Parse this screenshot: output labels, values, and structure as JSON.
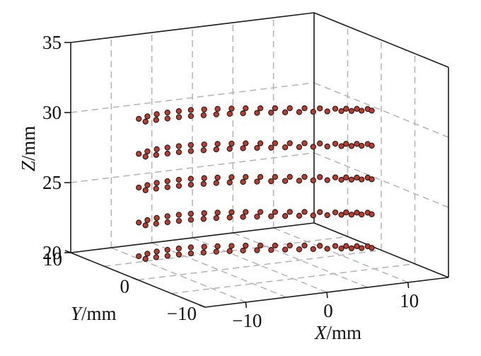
{
  "chart_data": {
    "type": "scatter",
    "title": "",
    "xlabel_var": "X",
    "xlabel_unit": "/mm",
    "ylabel_var": "Y",
    "ylabel_unit": "/mm",
    "zlabel_var": "Z",
    "zlabel_unit": "/mm",
    "xlim": [
      -15,
      15
    ],
    "ylim": [
      -10,
      10
    ],
    "zlim": [
      20,
      35
    ],
    "x_ticks": [
      {
        "value": -10,
        "label": "−10"
      },
      {
        "value": 0,
        "label": "0"
      },
      {
        "value": 10,
        "label": "10"
      }
    ],
    "y_ticks": [
      {
        "value": 10,
        "label": "10"
      },
      {
        "value": 0,
        "label": "0"
      },
      {
        "value": -10,
        "label": "−10"
      }
    ],
    "z_ticks": [
      {
        "value": 20,
        "label": "20"
      },
      {
        "value": 25,
        "label": "25"
      },
      {
        "value": 30,
        "label": "30"
      },
      {
        "value": 35,
        "label": "35"
      }
    ],
    "grid": true,
    "marker_color": "#c0392b",
    "marker_edge_color": "#1a1a1a",
    "layers": [
      {
        "z": 20.8,
        "points": [
          [
            -12,
            3.5
          ],
          [
            -10.6,
            3.9
          ],
          [
            -9.2,
            4.2
          ],
          [
            -7.8,
            4.3
          ],
          [
            -6.4,
            4.3
          ],
          [
            -5,
            4.2
          ],
          [
            -3.6,
            3.9
          ],
          [
            -2.2,
            3.6
          ],
          [
            -0.8,
            3.2
          ],
          [
            0.6,
            2.8
          ],
          [
            2,
            2.3
          ],
          [
            3.4,
            1.8
          ],
          [
            4.8,
            1.3
          ],
          [
            6.2,
            0.8
          ],
          [
            7.6,
            0.2
          ],
          [
            9,
            -0.4
          ],
          [
            10,
            -0.8
          ],
          [
            11,
            -1.2
          ],
          [
            12,
            -1.6
          ],
          [
            12,
            -2.2
          ],
          [
            11,
            -1.9
          ],
          [
            10,
            -1.6
          ],
          [
            9,
            -1.3
          ],
          [
            7.6,
            -0.9
          ],
          [
            6.2,
            -0.5
          ],
          [
            4.8,
            -0.1
          ],
          [
            3.4,
            0.3
          ],
          [
            2,
            0.7
          ],
          [
            0.6,
            1.1
          ],
          [
            -0.8,
            1.5
          ],
          [
            -2.2,
            1.8
          ],
          [
            -3.6,
            2.1
          ],
          [
            -5,
            2.3
          ],
          [
            -6.4,
            2.5
          ],
          [
            -7.8,
            2.6
          ],
          [
            -9.2,
            2.6
          ],
          [
            -10.6,
            2.6
          ],
          [
            -12,
            2.5
          ]
        ]
      },
      {
        "z": 23.2,
        "points": [
          [
            -12,
            3.5
          ],
          [
            -10.6,
            3.9
          ],
          [
            -9.2,
            4.2
          ],
          [
            -7.8,
            4.3
          ],
          [
            -6.4,
            4.3
          ],
          [
            -5,
            4.2
          ],
          [
            -3.6,
            3.9
          ],
          [
            -2.2,
            3.6
          ],
          [
            -0.8,
            3.2
          ],
          [
            0.6,
            2.8
          ],
          [
            2,
            2.3
          ],
          [
            3.4,
            1.8
          ],
          [
            4.8,
            1.3
          ],
          [
            6.2,
            0.8
          ],
          [
            7.6,
            0.2
          ],
          [
            9,
            -0.4
          ],
          [
            10,
            -0.8
          ],
          [
            11,
            -1.2
          ],
          [
            12,
            -1.6
          ],
          [
            12,
            -2.2
          ],
          [
            11,
            -1.9
          ],
          [
            10,
            -1.6
          ],
          [
            9,
            -1.3
          ],
          [
            7.6,
            -0.9
          ],
          [
            6.2,
            -0.5
          ],
          [
            4.8,
            -0.1
          ],
          [
            3.4,
            0.3
          ],
          [
            2,
            0.7
          ],
          [
            0.6,
            1.1
          ],
          [
            -0.8,
            1.5
          ],
          [
            -2.2,
            1.8
          ],
          [
            -3.6,
            2.1
          ],
          [
            -5,
            2.3
          ],
          [
            -6.4,
            2.5
          ],
          [
            -7.8,
            2.6
          ],
          [
            -9.2,
            2.6
          ],
          [
            -10.6,
            2.6
          ],
          [
            -12,
            2.5
          ]
        ]
      },
      {
        "z": 25.7,
        "points": [
          [
            -12,
            3.5
          ],
          [
            -10.6,
            3.9
          ],
          [
            -9.2,
            4.2
          ],
          [
            -7.8,
            4.3
          ],
          [
            -6.4,
            4.3
          ],
          [
            -5,
            4.2
          ],
          [
            -3.6,
            3.9
          ],
          [
            -2.2,
            3.6
          ],
          [
            -0.8,
            3.2
          ],
          [
            0.6,
            2.8
          ],
          [
            2,
            2.3
          ],
          [
            3.4,
            1.8
          ],
          [
            4.8,
            1.3
          ],
          [
            6.2,
            0.8
          ],
          [
            7.6,
            0.2
          ],
          [
            9,
            -0.4
          ],
          [
            10,
            -0.8
          ],
          [
            11,
            -1.2
          ],
          [
            12,
            -1.6
          ],
          [
            12,
            -2.2
          ],
          [
            11,
            -1.9
          ],
          [
            10,
            -1.6
          ],
          [
            9,
            -1.3
          ],
          [
            7.6,
            -0.9
          ],
          [
            6.2,
            -0.5
          ],
          [
            4.8,
            -0.1
          ],
          [
            3.4,
            0.3
          ],
          [
            2,
            0.7
          ],
          [
            0.6,
            1.1
          ],
          [
            -0.8,
            1.5
          ],
          [
            -2.2,
            1.8
          ],
          [
            -3.6,
            2.1
          ],
          [
            -5,
            2.3
          ],
          [
            -6.4,
            2.5
          ],
          [
            -7.8,
            2.6
          ],
          [
            -9.2,
            2.6
          ],
          [
            -10.6,
            2.6
          ],
          [
            -12,
            2.5
          ]
        ]
      },
      {
        "z": 28.1,
        "points": [
          [
            -12,
            3.5
          ],
          [
            -10.6,
            3.9
          ],
          [
            -9.2,
            4.2
          ],
          [
            -7.8,
            4.3
          ],
          [
            -6.4,
            4.3
          ],
          [
            -5,
            4.2
          ],
          [
            -3.6,
            3.9
          ],
          [
            -2.2,
            3.6
          ],
          [
            -0.8,
            3.2
          ],
          [
            0.6,
            2.8
          ],
          [
            2,
            2.3
          ],
          [
            3.4,
            1.8
          ],
          [
            4.8,
            1.3
          ],
          [
            6.2,
            0.8
          ],
          [
            7.6,
            0.2
          ],
          [
            9,
            -0.4
          ],
          [
            10,
            -0.8
          ],
          [
            11,
            -1.2
          ],
          [
            12,
            -1.6
          ],
          [
            12,
            -2.2
          ],
          [
            11,
            -1.9
          ],
          [
            10,
            -1.6
          ],
          [
            9,
            -1.3
          ],
          [
            7.6,
            -0.9
          ],
          [
            6.2,
            -0.5
          ],
          [
            4.8,
            -0.1
          ],
          [
            3.4,
            0.3
          ],
          [
            2,
            0.7
          ],
          [
            0.6,
            1.1
          ],
          [
            -0.8,
            1.5
          ],
          [
            -2.2,
            1.8
          ],
          [
            -3.6,
            2.1
          ],
          [
            -5,
            2.3
          ],
          [
            -6.4,
            2.5
          ],
          [
            -7.8,
            2.6
          ],
          [
            -9.2,
            2.6
          ],
          [
            -10.6,
            2.6
          ],
          [
            -12,
            2.5
          ]
        ]
      },
      {
        "z": 30.6,
        "points": [
          [
            -12,
            3.5
          ],
          [
            -10.6,
            3.9
          ],
          [
            -9.2,
            4.2
          ],
          [
            -7.8,
            4.3
          ],
          [
            -6.4,
            4.3
          ],
          [
            -5,
            4.2
          ],
          [
            -3.6,
            3.9
          ],
          [
            -2.2,
            3.6
          ],
          [
            -0.8,
            3.2
          ],
          [
            0.6,
            2.8
          ],
          [
            2,
            2.3
          ],
          [
            3.4,
            1.8
          ],
          [
            4.8,
            1.3
          ],
          [
            6.2,
            0.8
          ],
          [
            7.6,
            0.2
          ],
          [
            9,
            -0.4
          ],
          [
            10,
            -0.8
          ],
          [
            11,
            -1.2
          ],
          [
            12,
            -1.6
          ],
          [
            12,
            -2.2
          ],
          [
            11,
            -1.9
          ],
          [
            10,
            -1.6
          ],
          [
            9,
            -1.3
          ],
          [
            7.6,
            -0.9
          ],
          [
            6.2,
            -0.5
          ],
          [
            4.8,
            -0.1
          ],
          [
            3.4,
            0.3
          ],
          [
            2,
            0.7
          ],
          [
            0.6,
            1.1
          ],
          [
            -0.8,
            1.5
          ],
          [
            -2.2,
            1.8
          ],
          [
            -3.6,
            2.1
          ],
          [
            -5,
            2.3
          ],
          [
            -6.4,
            2.5
          ],
          [
            -7.8,
            2.6
          ],
          [
            -9.2,
            2.6
          ],
          [
            -10.6,
            2.6
          ],
          [
            -12,
            2.5
          ]
        ]
      }
    ]
  }
}
